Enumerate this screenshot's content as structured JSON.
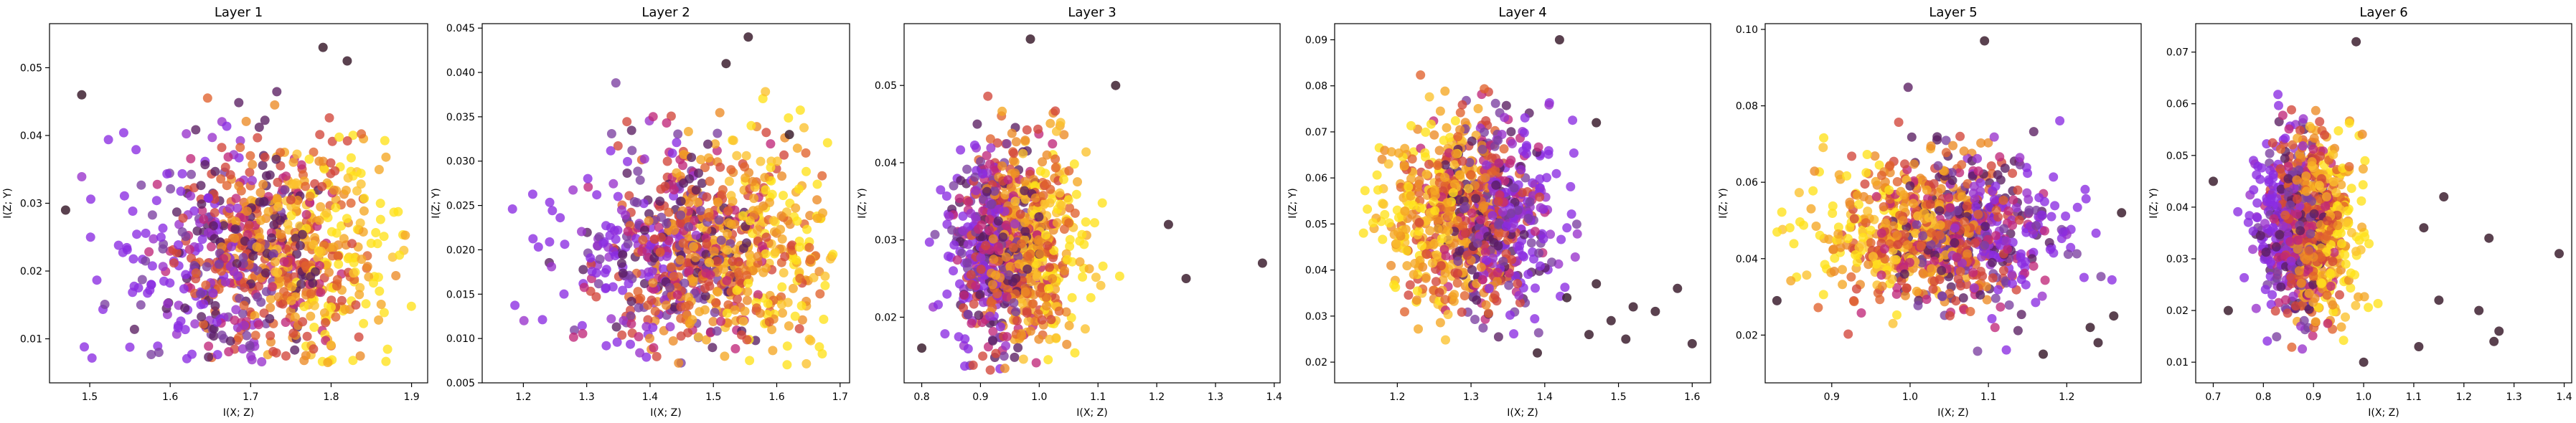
{
  "chart_data": [
    {
      "type": "scatter",
      "title": "Layer 1",
      "xlabel": "I(X; Z)",
      "ylabel": "I(Z; Y)",
      "xlim": [
        1.45,
        1.92
      ],
      "ylim": [
        0.0035,
        0.0565
      ],
      "xticks": [
        "1.5",
        "1.6",
        "1.7",
        "1.8",
        "1.9"
      ],
      "yticks": [
        "0.01",
        "0.02",
        "0.03",
        "0.04",
        "0.05"
      ],
      "cluster": {
        "cx": 1.715,
        "cy": 0.022,
        "sx": 0.075,
        "sy": 0.0085,
        "xmin": 1.47,
        "xmax": 1.9,
        "ymin": 0.006,
        "ymax": 0.054
      },
      "outliers": [
        [
          1.82,
          0.051
        ],
        [
          1.79,
          0.053
        ],
        [
          1.47,
          0.029
        ],
        [
          1.49,
          0.046
        ]
      ]
    },
    {
      "type": "scatter",
      "title": "Layer 2",
      "xlabel": "I(X; Z)",
      "ylabel": "I(Z; Y)",
      "xlim": [
        1.135,
        1.715
      ],
      "ylim": [
        0.005,
        0.0455
      ],
      "xticks": [
        "1.2",
        "1.3",
        "1.4",
        "1.5",
        "1.6",
        "1.7"
      ],
      "yticks": [
        "0.005",
        "0.010",
        "0.015",
        "0.020",
        "0.025",
        "0.030",
        "0.035",
        "0.040",
        "0.045"
      ],
      "cluster": {
        "cx": 1.48,
        "cy": 0.02,
        "sx": 0.1,
        "sy": 0.006,
        "xmin": 1.17,
        "xmax": 1.69,
        "ymin": 0.007,
        "ymax": 0.044
      },
      "outliers": [
        [
          1.555,
          0.044
        ],
        [
          1.52,
          0.041
        ],
        [
          1.62,
          0.033
        ]
      ]
    },
    {
      "type": "scatter",
      "title": "Layer 3",
      "xlabel": "I(X; Z)",
      "ylabel": "I(Z; Y)",
      "xlim": [
        0.77,
        1.41
      ],
      "ylim": [
        0.0115,
        0.058
      ],
      "xticks": [
        "0.8",
        "0.9",
        "1.0",
        "1.1",
        "1.2",
        "1.3",
        "1.4"
      ],
      "yticks": [
        "0.02",
        "0.03",
        "0.04",
        "0.05"
      ],
      "cluster": {
        "cx": 0.955,
        "cy": 0.029,
        "sx": 0.055,
        "sy": 0.0065,
        "xmin": 0.79,
        "xmax": 1.15,
        "ymin": 0.013,
        "ymax": 0.056
      },
      "outliers": [
        [
          1.38,
          0.027
        ],
        [
          1.22,
          0.032
        ],
        [
          1.25,
          0.025
        ],
        [
          1.13,
          0.05
        ],
        [
          0.985,
          0.056
        ],
        [
          0.8,
          0.016
        ]
      ]
    },
    {
      "type": "scatter",
      "title": "Layer 4",
      "xlabel": "I(X; Z)",
      "ylabel": "I(Z; Y)",
      "xlim": [
        1.115,
        1.625
      ],
      "ylim": [
        0.0155,
        0.0935
      ],
      "xticks": [
        "1.2",
        "1.3",
        "1.4",
        "1.5",
        "1.6"
      ],
      "yticks": [
        "0.02",
        "0.03",
        "0.04",
        "0.05",
        "0.06",
        "0.07",
        "0.08",
        "0.09"
      ],
      "cluster": {
        "cx": 1.3,
        "cy": 0.052,
        "sx": 0.055,
        "sy": 0.01,
        "xmin": 1.13,
        "xmax": 1.45,
        "ymin": 0.024,
        "ymax": 0.09
      },
      "outliers": [
        [
          1.6,
          0.024
        ],
        [
          1.58,
          0.036
        ],
        [
          1.52,
          0.032
        ],
        [
          1.49,
          0.029
        ],
        [
          1.46,
          0.026
        ],
        [
          1.43,
          0.034
        ],
        [
          1.55,
          0.031
        ],
        [
          1.47,
          0.037
        ],
        [
          1.39,
          0.022
        ],
        [
          1.51,
          0.025
        ],
        [
          1.42,
          0.09
        ],
        [
          1.47,
          0.072
        ]
      ]
    },
    {
      "type": "scatter",
      "title": "Layer 5",
      "xlabel": "I(X; Z)",
      "ylabel": "I(Z; Y)",
      "xlim": [
        0.815,
        1.295
      ],
      "ylim": [
        0.0075,
        0.1015
      ],
      "xticks": [
        "0.9",
        "1.0",
        "1.1",
        "1.2"
      ],
      "yticks": [
        "0.02",
        "0.04",
        "0.06",
        "0.08",
        "0.10"
      ],
      "cluster": {
        "cx": 1.04,
        "cy": 0.047,
        "sx": 0.075,
        "sy": 0.01,
        "xmin": 0.83,
        "xmax": 1.27,
        "ymin": 0.015,
        "ymax": 0.097
      },
      "outliers": [
        [
          1.095,
          0.097
        ],
        [
          1.27,
          0.052
        ],
        [
          1.23,
          0.022
        ],
        [
          1.24,
          0.018
        ],
        [
          1.17,
          0.015
        ],
        [
          1.26,
          0.025
        ],
        [
          0.83,
          0.029
        ]
      ]
    },
    {
      "type": "scatter",
      "title": "Layer 6",
      "xlabel": "I(X; Z)",
      "ylabel": "I(Z; Y)",
      "xlim": [
        0.665,
        1.415
      ],
      "ylim": [
        0.006,
        0.0755
      ],
      "xticks": [
        "0.7",
        "0.8",
        "0.9",
        "1.0",
        "1.1",
        "1.2",
        "1.3",
        "1.4"
      ],
      "yticks": [
        "0.01",
        "0.02",
        "0.03",
        "0.04",
        "0.05",
        "0.06",
        "0.07"
      ],
      "cluster": {
        "cx": 0.885,
        "cy": 0.036,
        "sx": 0.045,
        "sy": 0.0085,
        "xmin": 0.7,
        "xmax": 1.07,
        "ymin": 0.012,
        "ymax": 0.072
      },
      "outliers": [
        [
          1.39,
          0.031
        ],
        [
          1.27,
          0.016
        ],
        [
          1.25,
          0.034
        ],
        [
          1.23,
          0.02
        ],
        [
          1.16,
          0.042
        ],
        [
          1.15,
          0.022
        ],
        [
          1.12,
          0.036
        ],
        [
          1.11,
          0.013
        ],
        [
          1.26,
          0.014
        ],
        [
          1.0,
          0.01
        ],
        [
          0.985,
          0.072
        ],
        [
          0.7,
          0.045
        ],
        [
          0.73,
          0.02
        ]
      ]
    }
  ],
  "colors": {
    "palette": [
      "#8a2be2",
      "#9932cc",
      "#7b3fa0",
      "#5a1e62",
      "#c0287a",
      "#d2453a",
      "#e0622d",
      "#ec8a25",
      "#f5a623",
      "#fbc12d",
      "#ffe11a"
    ],
    "outlier": "#3d2030"
  }
}
